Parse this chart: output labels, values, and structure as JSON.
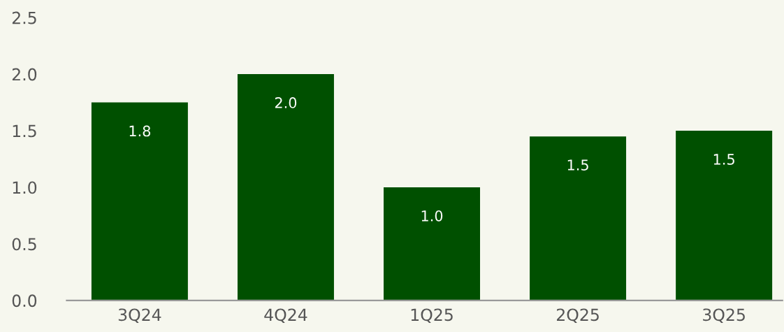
{
  "chart_data": {
    "type": "bar",
    "categories": [
      "3Q24",
      "4Q24",
      "1Q25",
      "2Q25",
      "3Q25"
    ],
    "values": [
      1.75,
      2.0,
      1.0,
      1.45,
      1.5
    ],
    "value_labels": [
      "1.8",
      "2.0",
      "1.0",
      "1.5",
      "1.5"
    ],
    "color": "#005000",
    "ylim": [
      0,
      2.5
    ],
    "yticks": [
      {
        "value": 0,
        "label": "0.0"
      },
      {
        "value": 0.5,
        "label": "0.5"
      },
      {
        "value": 1,
        "label": "1.0"
      },
      {
        "value": 1.5,
        "label": "1.5"
      },
      {
        "value": 2,
        "label": "2.0"
      },
      {
        "value": 2.5,
        "label": "2.5"
      }
    ],
    "grid": false,
    "legend": false
  }
}
